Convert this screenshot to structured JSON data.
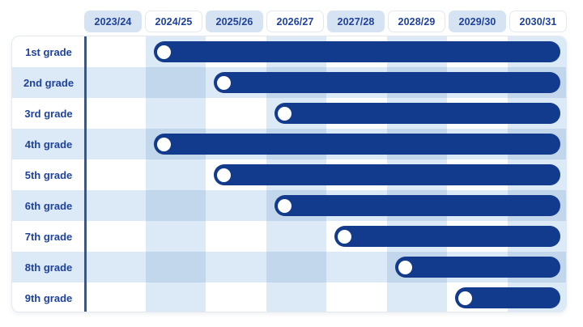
{
  "colors": {
    "bar": "#123a8d",
    "marker": "#ffffff",
    "text": "#1e429b",
    "tint": "#dce9f6",
    "tint_overlap": "#c2d7ec",
    "tab_tint": "#d6e3f3",
    "tab_border": "#e4e8f0",
    "card_border": "#e6e8f0",
    "divider": "#3d577e",
    "background": "#ffffff"
  },
  "chart_data": {
    "type": "bar",
    "subtype": "gantt-timeline",
    "title": "",
    "xlabel": "",
    "ylabel": "",
    "x_categories": [
      "2023/24",
      "2024/25",
      "2025/26",
      "2026/27",
      "2027/28",
      "2028/29",
      "2029/30",
      "2030/31"
    ],
    "categories": [
      "1st grade",
      "2nd grade",
      "3rd grade",
      "4th grade",
      "5th grade",
      "6th grade",
      "7th grade",
      "8th grade",
      "9th grade"
    ],
    "bars": [
      {
        "category": "1st grade",
        "start": "2024/25",
        "end": "2030/31"
      },
      {
        "category": "2nd grade",
        "start": "2025/26",
        "end": "2030/31"
      },
      {
        "category": "3rd grade",
        "start": "2026/27",
        "end": "2030/31"
      },
      {
        "category": "4th grade",
        "start": "2024/25",
        "end": "2030/31"
      },
      {
        "category": "5th grade",
        "start": "2025/26",
        "end": "2030/31"
      },
      {
        "category": "6th grade",
        "start": "2026/27",
        "end": "2030/31"
      },
      {
        "category": "7th grade",
        "start": "2027/28",
        "end": "2030/31"
      },
      {
        "category": "8th grade",
        "start": "2028/29",
        "end": "2030/31"
      },
      {
        "category": "9th grade",
        "start": "2029/30",
        "end": "2030/31"
      }
    ],
    "layout": {
      "legend": "none",
      "grid": "checkerboard row/column striping, darker at overlap",
      "marker": "white circle at each bar start",
      "header_tab_striping": "tinted on even-index years starting 2023/24",
      "body_column_striping": "tinted on odd-index years starting 2024/25",
      "row_striping": "tinted on even grades (2nd,4th,6th,8th)"
    }
  }
}
